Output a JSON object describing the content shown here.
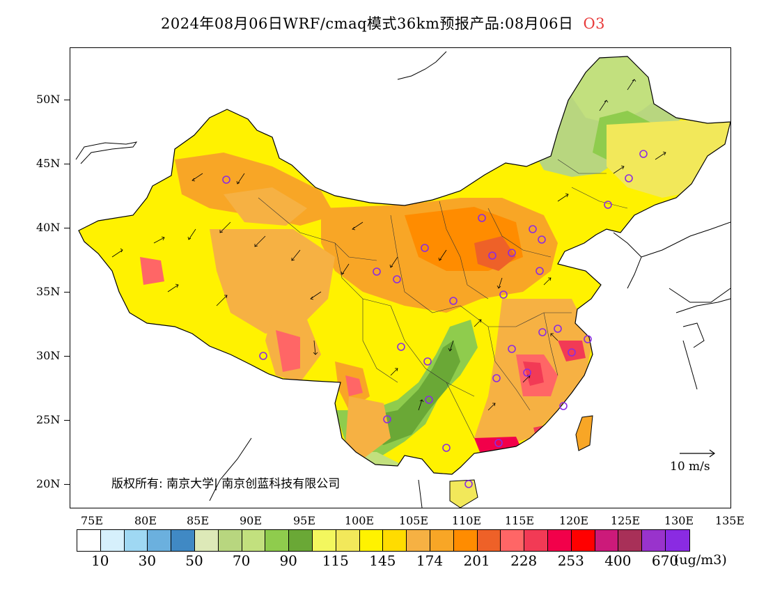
{
  "title": {
    "text": "2024年08月06日WRF/cmaq模式36km预报产品:08月06日",
    "species": "O3"
  },
  "lat_labels": [
    "50N",
    "45N",
    "40N",
    "35N",
    "30N",
    "25N",
    "20N"
  ],
  "lon_labels": [
    "75E",
    "80E",
    "85E",
    "90E",
    "95E",
    "100E",
    "105E",
    "110E",
    "115E",
    "120E",
    "125E",
    "130E",
    "135E"
  ],
  "copyright": "版权所有: 南京大学| 南京创蓝科技有限公司",
  "wind_scale": "10 m/s",
  "colorbar": {
    "colors": [
      "#ffffff",
      "#d6f0fc",
      "#9fd8f3",
      "#6bb0de",
      "#4089c4",
      "#dde9b8",
      "#b8d67f",
      "#c2e07e",
      "#8fcc4d",
      "#6aa836",
      "#f3f75e",
      "#f2e85a",
      "#fff200",
      "#ffdc00",
      "#f6b143",
      "#f8a626",
      "#ff8c00",
      "#ee6128",
      "#ff6666",
      "#f23a55",
      "#f2004a",
      "#ff0000",
      "#cc1a7a",
      "#a83058",
      "#9933cc",
      "#8a2be2"
    ],
    "labels": [
      "10",
      "30",
      "50",
      "70",
      "90",
      "115",
      "145",
      "174",
      "201",
      "228",
      "253",
      "400",
      "670"
    ],
    "unit": "(ug/m3)"
  },
  "monitoring_sites_shown": true
}
